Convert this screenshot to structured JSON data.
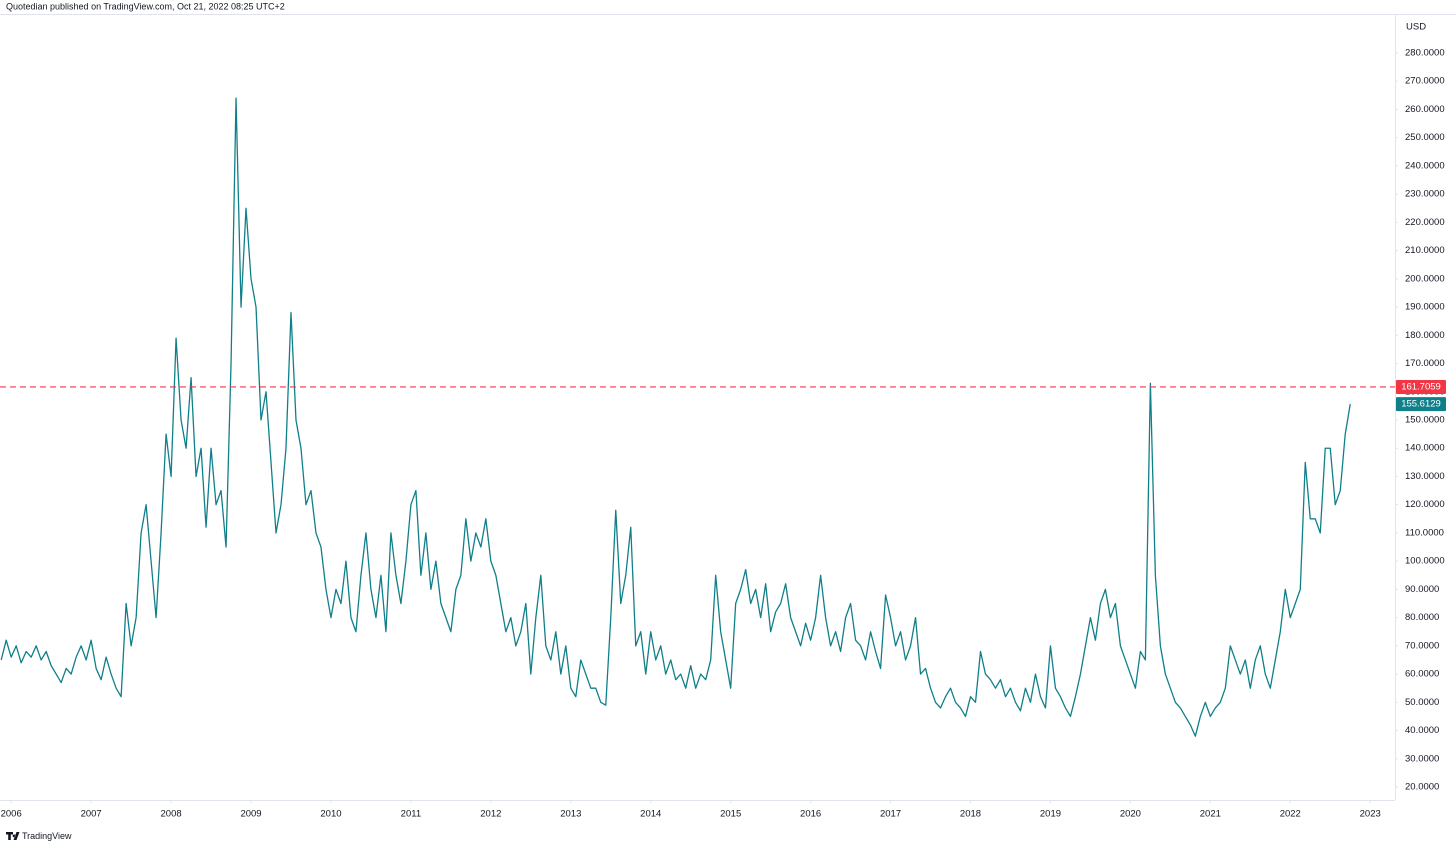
{
  "header": {
    "text": "Quotedian published on TradingView.com, Oct 21, 2022 08:25 UTC+2"
  },
  "footer": {
    "brand": "TradingView"
  },
  "chart_data": {
    "type": "line",
    "currency": "USD",
    "color": "#0f7f89",
    "grid": false,
    "xlim": [
      2005.86,
      2023.31
    ],
    "ylim": [
      15.4,
      293.8
    ],
    "xticks": [
      2006,
      2007,
      2008,
      2009,
      2010,
      2011,
      2012,
      2013,
      2014,
      2015,
      2016,
      2017,
      2018,
      2019,
      2020,
      2021,
      2022,
      2023
    ],
    "yticks": [
      {
        "value": 20,
        "label": "20.0000"
      },
      {
        "value": 30,
        "label": "30.0000"
      },
      {
        "value": 40,
        "label": "40.0000"
      },
      {
        "value": 50,
        "label": "50.0000"
      },
      {
        "value": 60,
        "label": "60.0000"
      },
      {
        "value": 70,
        "label": "70.0000"
      },
      {
        "value": 80,
        "label": "80.0000"
      },
      {
        "value": 90,
        "label": "90.0000"
      },
      {
        "value": 100,
        "label": "100.0000"
      },
      {
        "value": 110,
        "label": "110.0000"
      },
      {
        "value": 120,
        "label": "120.0000"
      },
      {
        "value": 130,
        "label": "130.0000"
      },
      {
        "value": 140,
        "label": "140.0000"
      },
      {
        "value": 150,
        "label": "150.0000"
      },
      {
        "value": 160,
        "label": "160.0000"
      },
      {
        "value": 170,
        "label": "170.0000"
      },
      {
        "value": 180,
        "label": "180.0000"
      },
      {
        "value": 190,
        "label": "190.0000"
      },
      {
        "value": 200,
        "label": "200.0000"
      },
      {
        "value": 210,
        "label": "210.0000"
      },
      {
        "value": 220,
        "label": "220.0000"
      },
      {
        "value": 230,
        "label": "230.0000"
      },
      {
        "value": 240,
        "label": "240.0000"
      },
      {
        "value": 250,
        "label": "250.0000"
      },
      {
        "value": 260,
        "label": "260.0000"
      },
      {
        "value": 270,
        "label": "270.0000"
      },
      {
        "value": 280,
        "label": "280.0000"
      }
    ],
    "reference_line": {
      "value": 161.7059,
      "color": "#f23645"
    },
    "x": [
      2005.875,
      2005.9375,
      2006,
      2006.0625,
      2006.125,
      2006.1875,
      2006.25,
      2006.3125,
      2006.375,
      2006.4375,
      2006.5,
      2006.5625,
      2006.625,
      2006.6875,
      2006.75,
      2006.8125,
      2006.875,
      2006.9375,
      2007,
      2007.0625,
      2007.125,
      2007.1875,
      2007.25,
      2007.3125,
      2007.375,
      2007.4375,
      2007.5,
      2007.5625,
      2007.625,
      2007.6875,
      2007.75,
      2007.8125,
      2007.875,
      2007.9375,
      2008,
      2008.0625,
      2008.125,
      2008.1875,
      2008.25,
      2008.3125,
      2008.375,
      2008.4375,
      2008.5,
      2008.5625,
      2008.625,
      2008.6875,
      2008.75,
      2008.8125,
      2008.875,
      2008.9375,
      2009,
      2009.0625,
      2009.125,
      2009.1875,
      2009.25,
      2009.3125,
      2009.375,
      2009.4375,
      2009.5,
      2009.5625,
      2009.625,
      2009.6875,
      2009.75,
      2009.8125,
      2009.875,
      2009.9375,
      2010,
      2010.0625,
      2010.125,
      2010.1875,
      2010.25,
      2010.3125,
      2010.375,
      2010.4375,
      2010.5,
      2010.5625,
      2010.625,
      2010.6875,
      2010.75,
      2010.8125,
      2010.875,
      2010.9375,
      2011,
      2011.0625,
      2011.125,
      2011.1875,
      2011.25,
      2011.3125,
      2011.375,
      2011.4375,
      2011.5,
      2011.5625,
      2011.625,
      2011.6875,
      2011.75,
      2011.8125,
      2011.875,
      2011.9375,
      2012,
      2012.0625,
      2012.125,
      2012.1875,
      2012.25,
      2012.3125,
      2012.375,
      2012.4375,
      2012.5,
      2012.5625,
      2012.625,
      2012.6875,
      2012.75,
      2012.8125,
      2012.875,
      2012.9375,
      2013,
      2013.0625,
      2013.125,
      2013.1875,
      2013.25,
      2013.3125,
      2013.375,
      2013.4375,
      2013.5,
      2013.5625,
      2013.625,
      2013.6875,
      2013.75,
      2013.8125,
      2013.875,
      2013.9375,
      2014,
      2014.0625,
      2014.125,
      2014.1875,
      2014.25,
      2014.3125,
      2014.375,
      2014.4375,
      2014.5,
      2014.5625,
      2014.625,
      2014.6875,
      2014.75,
      2014.8125,
      2014.875,
      2014.9375,
      2015,
      2015.0625,
      2015.125,
      2015.1875,
      2015.25,
      2015.3125,
      2015.375,
      2015.4375,
      2015.5,
      2015.5625,
      2015.625,
      2015.6875,
      2015.75,
      2015.8125,
      2015.875,
      2015.9375,
      2016,
      2016.0625,
      2016.125,
      2016.1875,
      2016.25,
      2016.3125,
      2016.375,
      2016.4375,
      2016.5,
      2016.5625,
      2016.625,
      2016.6875,
      2016.75,
      2016.8125,
      2016.875,
      2016.9375,
      2017,
      2017.0625,
      2017.125,
      2017.1875,
      2017.25,
      2017.3125,
      2017.375,
      2017.4375,
      2017.5,
      2017.5625,
      2017.625,
      2017.6875,
      2017.75,
      2017.8125,
      2017.875,
      2017.9375,
      2018,
      2018.0625,
      2018.125,
      2018.1875,
      2018.25,
      2018.3125,
      2018.375,
      2018.4375,
      2018.5,
      2018.5625,
      2018.625,
      2018.6875,
      2018.75,
      2018.8125,
      2018.875,
      2018.9375,
      2019,
      2019.0625,
      2019.125,
      2019.1875,
      2019.25,
      2019.3125,
      2019.375,
      2019.4375,
      2019.5,
      2019.5625,
      2019.625,
      2019.6875,
      2019.75,
      2019.8125,
      2019.875,
      2019.9375,
      2020,
      2020.0625,
      2020.125,
      2020.1875,
      2020.25,
      2020.3125,
      2020.375,
      2020.4375,
      2020.5,
      2020.5625,
      2020.625,
      2020.6875,
      2020.75,
      2020.8125,
      2020.875,
      2020.9375,
      2021,
      2021.0625,
      2021.125,
      2021.1875,
      2021.25,
      2021.3125,
      2021.375,
      2021.4375,
      2021.5,
      2021.5625,
      2021.625,
      2021.6875,
      2021.75,
      2021.8125,
      2021.875,
      2021.9375,
      2022,
      2022.0625,
      2022.125,
      2022.1875,
      2022.25,
      2022.3125,
      2022.375,
      2022.4375,
      2022.5,
      2022.5625,
      2022.625,
      2022.6875,
      2022.75
    ],
    "values": [
      65,
      72,
      66,
      70,
      64,
      68,
      66,
      70,
      65,
      68,
      63,
      60,
      57,
      62,
      60,
      66,
      70,
      65,
      72,
      62,
      58,
      66,
      60,
      55,
      52,
      85,
      70,
      80,
      110,
      120,
      100,
      80,
      110,
      145,
      130,
      179,
      150,
      140,
      165,
      130,
      140,
      112,
      140,
      120,
      125,
      105,
      170,
      264,
      190,
      225,
      200,
      190,
      150,
      160,
      135,
      110,
      120,
      140,
      188,
      150,
      140,
      120,
      125,
      110,
      105,
      90,
      80,
      90,
      85,
      100,
      80,
      75,
      95,
      110,
      90,
      80,
      95,
      75,
      110,
      95,
      85,
      100,
      120,
      125,
      95,
      110,
      90,
      100,
      85,
      80,
      75,
      90,
      95,
      115,
      100,
      110,
      105,
      115,
      100,
      95,
      85,
      75,
      80,
      70,
      75,
      85,
      60,
      80,
      95,
      70,
      65,
      75,
      60,
      70,
      55,
      52,
      65,
      60,
      55,
      55,
      50,
      49,
      80,
      118,
      85,
      95,
      112,
      70,
      75,
      60,
      75,
      65,
      70,
      60,
      65,
      58,
      60,
      55,
      63,
      55,
      60,
      58,
      65,
      95,
      75,
      65,
      55,
      85,
      90,
      97,
      85,
      90,
      80,
      92,
      75,
      82,
      85,
      92,
      80,
      75,
      70,
      78,
      72,
      80,
      95,
      80,
      70,
      75,
      68,
      80,
      85,
      72,
      70,
      65,
      75,
      68,
      62,
      88,
      80,
      70,
      75,
      65,
      70,
      80,
      60,
      62,
      55,
      50,
      48,
      52,
      55,
      50,
      48,
      45,
      52,
      50,
      68,
      60,
      58,
      55,
      58,
      52,
      55,
      50,
      47,
      55,
      50,
      60,
      52,
      48,
      70,
      55,
      52,
      48,
      45,
      52,
      60,
      70,
      80,
      72,
      85,
      90,
      80,
      85,
      70,
      65,
      60,
      55,
      68,
      65,
      163,
      95,
      70,
      60,
      55,
      50,
      48,
      45,
      42,
      38,
      45,
      50,
      45,
      48,
      50,
      55,
      70,
      65,
      60,
      65,
      55,
      65,
      70,
      60,
      55,
      65,
      75,
      90,
      80,
      85,
      90,
      135,
      115,
      115,
      110,
      140,
      140,
      120,
      125,
      145,
      155.6129
    ]
  }
}
